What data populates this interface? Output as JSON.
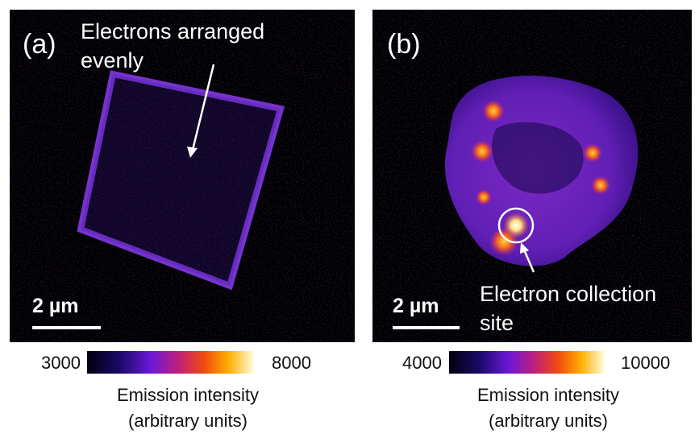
{
  "panels": [
    {
      "label": "(a)",
      "annotation": [
        "Electrons arranged",
        "evenly"
      ],
      "scale_bar": "2 µm",
      "colorbar": {
        "min": 3000,
        "max": 8000,
        "title": [
          "Emission intensity",
          "(arbitrary units)"
        ]
      }
    },
    {
      "label": "(b)",
      "annotation": [
        "Electron collection",
        "site"
      ],
      "scale_bar": "2 µm",
      "colorbar": {
        "min": 4000,
        "max": 10000,
        "title": [
          "Emission intensity",
          "(arbitrary units)"
        ]
      }
    }
  ]
}
